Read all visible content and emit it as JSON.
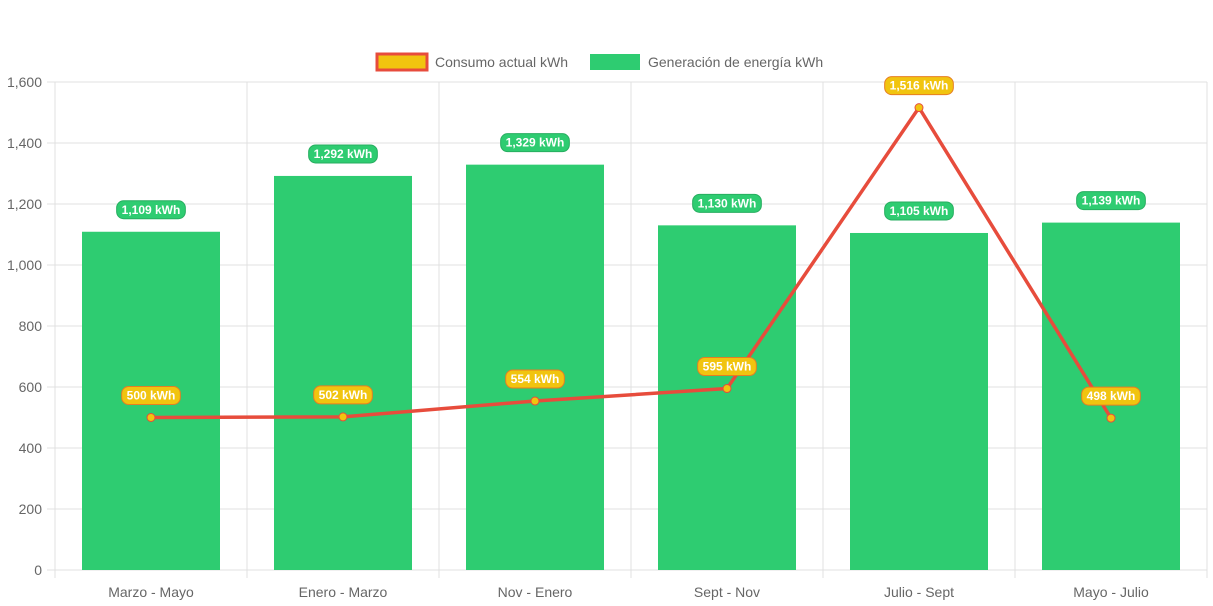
{
  "chart_data": {
    "type": "bar",
    "categories": [
      "Marzo - Mayo",
      "Enero - Marzo",
      "Nov - Enero",
      "Sept - Nov",
      "Julio - Sept",
      "Mayo - Julio"
    ],
    "ylim": [
      0,
      1600
    ],
    "yticks": [
      "0",
      "200",
      "400",
      "600",
      "800",
      "1,000",
      "1,200",
      "1,400",
      "1,600"
    ],
    "ytick_values": [
      0,
      200,
      400,
      600,
      800,
      1000,
      1200,
      1400,
      1600
    ],
    "series": [
      {
        "name": "Consumo actual kWh",
        "type": "line",
        "color": "#e74c3c",
        "label_color": "#f1c40f",
        "values": [
          500,
          502,
          554,
          595,
          1516,
          498
        ],
        "labels": [
          "500 kWh",
          "502 kWh",
          "554 kWh",
          "595 kWh",
          "1,516 kWh",
          "498 kWh"
        ]
      },
      {
        "name": "Generación de energía kWh",
        "type": "bar",
        "color": "#2ecc71",
        "values": [
          1109,
          1292,
          1329,
          1130,
          1105,
          1139
        ],
        "labels": [
          "1,109 kWh",
          "1,292 kWh",
          "1,329 kWh",
          "1,130 kWh",
          "1,105 kWh",
          "1,139 kWh"
        ]
      }
    ],
    "legend": "top-center",
    "grid": true
  }
}
